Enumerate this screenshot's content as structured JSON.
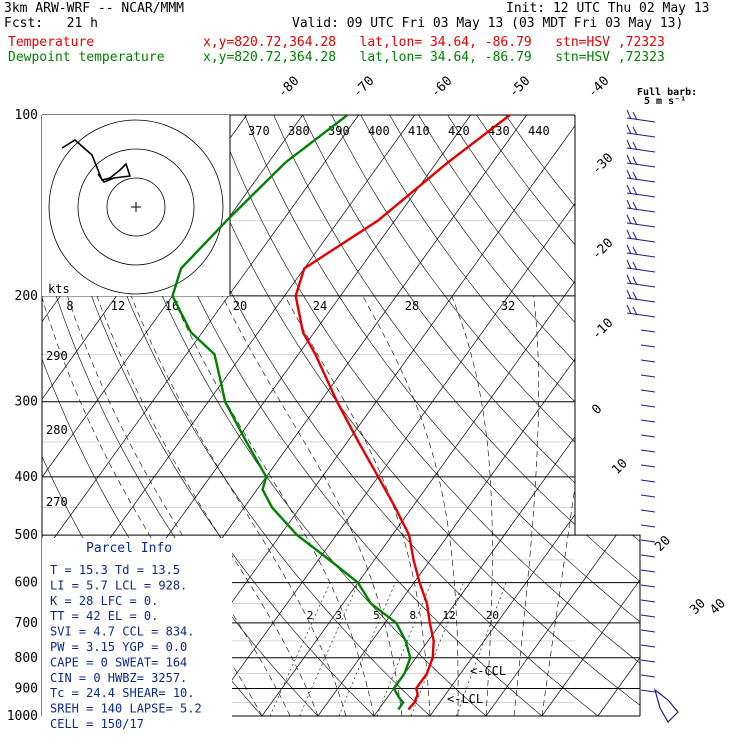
{
  "header": {
    "title": "3km ARW-WRF -- NCAR/MMM",
    "init": "Init: 12 UTC Thu 02 May 13",
    "fcst": "Fcst:   21 h",
    "valid": "Valid: 09 UTC Fri 03 May 13 (03 MDT Fri 03 May 13)",
    "temp_label": "Temperature",
    "temp_loc": "x,y=820.72,364.28   lat,lon= 34.64, -86.79   stn=HSV ,72323",
    "dew_label": "Dewpoint temperature",
    "dew_loc": "x,y=820.72,364.28   lat,lon= 34.64, -86.79   stn=HSV ,72323"
  },
  "colors": {
    "temperature": "#e00000",
    "dewpoint": "#008000",
    "parcel_text": "#0a2a8c",
    "wind_barb": "#1a1a8c"
  },
  "chart_data": {
    "type": "line",
    "pressure_axis": {
      "ticks": [
        100,
        200,
        300,
        400,
        500,
        600,
        700,
        800,
        900,
        1000
      ],
      "ylim": [
        1000,
        100
      ],
      "scale": "log"
    },
    "isotherm_labels": [
      "-80",
      "-70",
      "-60",
      "-50",
      "-40",
      "-30",
      "-20",
      "-10",
      "0",
      "10",
      "20",
      "30",
      "40"
    ],
    "theta_labels": [
      "370",
      "380",
      "390",
      "400",
      "410",
      "420",
      "430",
      "440"
    ],
    "theta_e_side_labels": [
      "290",
      "280",
      "270"
    ],
    "mixing_ratio_labels": [
      "2",
      "3",
      "5",
      "8",
      "12",
      "20"
    ],
    "hodograph": {
      "units_label": "kts",
      "ring_labels": [
        "8",
        "12",
        "16",
        "20",
        "24",
        "28",
        "32"
      ]
    },
    "barb_legend": [
      "Full barb:",
      "5 m s⁻¹"
    ],
    "ccl_label": "<-CCL",
    "lcl_label": "<-LCL",
    "series": [
      {
        "name": "Temperature",
        "points": [
          [
            100,
            -43
          ],
          [
            120,
            -48
          ],
          [
            150,
            -53
          ],
          [
            180,
            -60
          ],
          [
            200,
            -58
          ],
          [
            230,
            -52
          ],
          [
            250,
            -47
          ],
          [
            300,
            -37
          ],
          [
            350,
            -28
          ],
          [
            400,
            -20
          ],
          [
            450,
            -13
          ],
          [
            500,
            -7
          ],
          [
            550,
            -3
          ],
          [
            600,
            1
          ],
          [
            650,
            5
          ],
          [
            700,
            8
          ],
          [
            750,
            11
          ],
          [
            800,
            13
          ],
          [
            850,
            14
          ],
          [
            880,
            14
          ],
          [
            900,
            14
          ],
          [
            920,
            15
          ],
          [
            950,
            15.5
          ],
          [
            975,
            15.3
          ]
        ]
      },
      {
        "name": "Dewpoint temperature",
        "points": [
          [
            100,
            -72
          ],
          [
            120,
            -77
          ],
          [
            150,
            -80
          ],
          [
            180,
            -82
          ],
          [
            200,
            -80
          ],
          [
            230,
            -72
          ],
          [
            250,
            -65
          ],
          [
            280,
            -60
          ],
          [
            300,
            -57
          ],
          [
            350,
            -48
          ],
          [
            400,
            -40
          ],
          [
            420,
            -39
          ],
          [
            450,
            -35
          ],
          [
            500,
            -27
          ],
          [
            550,
            -18
          ],
          [
            600,
            -10
          ],
          [
            650,
            -5
          ],
          [
            700,
            2
          ],
          [
            750,
            6
          ],
          [
            800,
            9
          ],
          [
            850,
            10
          ],
          [
            880,
            10
          ],
          [
            900,
            10
          ],
          [
            930,
            12
          ],
          [
            950,
            13.5
          ],
          [
            975,
            13.5
          ]
        ]
      }
    ]
  },
  "parcel_info": {
    "title": "Parcel Info",
    "rows": [
      "T  =   15.3  Td =  13.5",
      "LI =    5.7  LCL =  928.",
      "K  =     28  LFC =    0.",
      "TT =     42  EL  =    0.",
      "SVI =   4.7  CCL =  834.",
      "PW =   3.15  YGP =   0.0",
      "CAPE =    0  SWEAT=  164",
      "CIN =     0  HWBZ= 3257.",
      "Tc =   24.4  SHEAR=  10.",
      "SREH =  140  LAPSE=  5.2",
      "CELL = 150/17"
    ]
  }
}
